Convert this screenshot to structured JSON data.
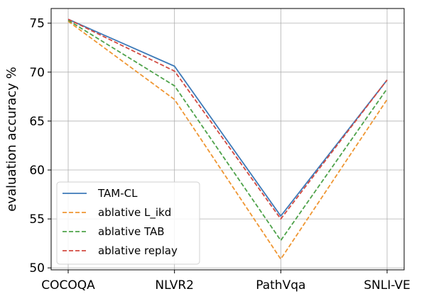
{
  "chart_data": {
    "type": "line",
    "title": "",
    "xlabel": "",
    "ylabel": "evaluation accuracy %",
    "categories": [
      "COCOQA",
      "NLVR2",
      "PathVqa",
      "SNLI-VE"
    ],
    "ylim": [
      49.8,
      76.5
    ],
    "yticks": [
      50,
      55,
      60,
      65,
      70,
      75
    ],
    "grid": true,
    "legend_position": "lower-left",
    "series": [
      {
        "name": "TAM-CL",
        "values": [
          75.4,
          70.6,
          55.3,
          69.2
        ],
        "color": "#3d7ab8",
        "dash": "solid"
      },
      {
        "name": "ablative L_ikd",
        "values": [
          75.2,
          67.2,
          50.9,
          67.2
        ],
        "color": "#ef9632",
        "dash": "dashed"
      },
      {
        "name": "ablative TAB",
        "values": [
          75.3,
          68.6,
          52.8,
          68.3
        ],
        "color": "#4ea24a",
        "dash": "dashed"
      },
      {
        "name": "ablative replay",
        "values": [
          75.4,
          70.1,
          55.0,
          69.2
        ],
        "color": "#d24a41",
        "dash": "dashed"
      }
    ]
  }
}
